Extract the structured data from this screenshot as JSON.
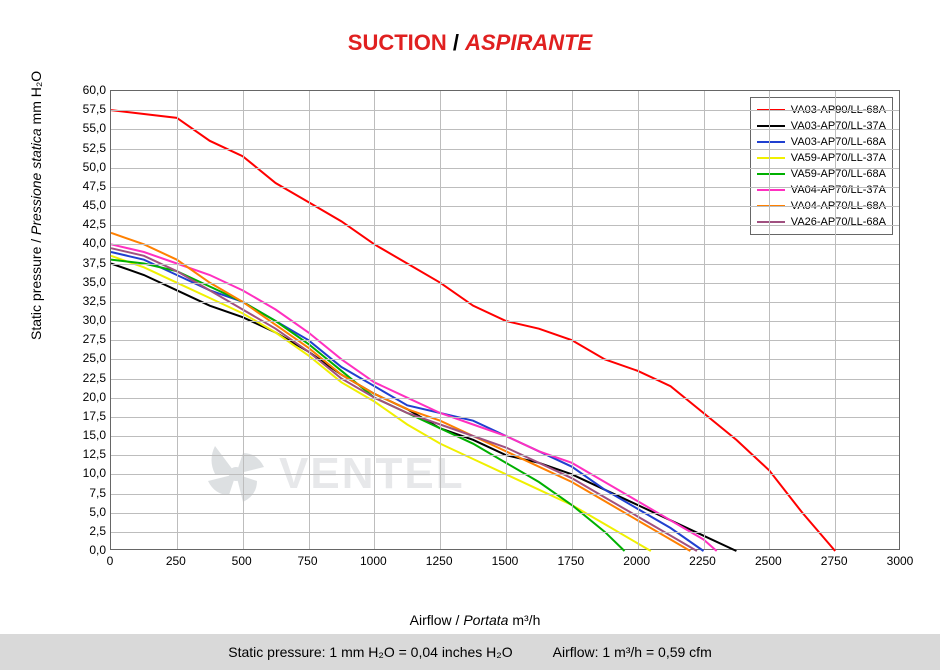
{
  "title": {
    "reg": "SUCTION",
    "sep": " / ",
    "ital": "ASPIRANTE"
  },
  "ylabel": {
    "reg": "Static pressure",
    "sep": " / ",
    "ital": "Pressione statica",
    "unit": " mm H₂O"
  },
  "xlabel": {
    "reg": "Airflow",
    "sep": " / ",
    "ital": "Portata",
    "unit": " m³/h"
  },
  "footer": {
    "left": "Static pressure: 1 mm H₂O = 0,04 inches H₂O",
    "right": "Airflow: 1 m³/h = 0,59 cfm"
  },
  "watermark": "VENTEL",
  "chart": {
    "type": "line",
    "xlim": [
      0,
      3000
    ],
    "ylim": [
      0,
      60
    ],
    "xtick_step": 250,
    "ytick_step": 2.5,
    "xtick_decimals": 0,
    "ytick_decimals": 1,
    "grid_color": "#bdbdbd",
    "border_color": "#666666",
    "background": "#ffffff",
    "line_width": 2,
    "series": [
      {
        "name": "VA03-AP90/LL-68A",
        "color": "#ff0000",
        "points": [
          [
            0,
            57.5
          ],
          [
            125,
            57
          ],
          [
            250,
            56.5
          ],
          [
            375,
            53.5
          ],
          [
            500,
            51.5
          ],
          [
            625,
            48
          ],
          [
            750,
            45.5
          ],
          [
            875,
            43
          ],
          [
            1000,
            40
          ],
          [
            1125,
            37.5
          ],
          [
            1250,
            35
          ],
          [
            1375,
            32
          ],
          [
            1500,
            30
          ],
          [
            1625,
            29
          ],
          [
            1750,
            27.5
          ],
          [
            1875,
            25
          ],
          [
            2000,
            23.5
          ],
          [
            2125,
            21.5
          ],
          [
            2250,
            18
          ],
          [
            2375,
            14.5
          ],
          [
            2500,
            10.5
          ],
          [
            2625,
            5
          ],
          [
            2750,
            0
          ]
        ]
      },
      {
        "name": "VA03-AP70/LL-37A",
        "color": "#000000",
        "points": [
          [
            0,
            37.5
          ],
          [
            125,
            36
          ],
          [
            250,
            34
          ],
          [
            375,
            32
          ],
          [
            500,
            30.5
          ],
          [
            625,
            28.5
          ],
          [
            750,
            26
          ],
          [
            875,
            23
          ],
          [
            1000,
            20.5
          ],
          [
            1125,
            18.5
          ],
          [
            1250,
            16
          ],
          [
            1375,
            14.5
          ],
          [
            1500,
            12.5
          ],
          [
            1625,
            11.5
          ],
          [
            1750,
            10
          ],
          [
            1875,
            8
          ],
          [
            2000,
            6
          ],
          [
            2125,
            4
          ],
          [
            2250,
            2
          ],
          [
            2375,
            0
          ]
        ]
      },
      {
        "name": "VA03-AP70/LL-68A",
        "color": "#2040d0",
        "points": [
          [
            0,
            39
          ],
          [
            125,
            38
          ],
          [
            250,
            36
          ],
          [
            375,
            34
          ],
          [
            500,
            32.5
          ],
          [
            625,
            30
          ],
          [
            750,
            27.5
          ],
          [
            875,
            24
          ],
          [
            1000,
            21.5
          ],
          [
            1125,
            19
          ],
          [
            1250,
            18
          ],
          [
            1375,
            17
          ],
          [
            1500,
            15
          ],
          [
            1625,
            13
          ],
          [
            1750,
            11
          ],
          [
            1875,
            8
          ],
          [
            2000,
            5.5
          ],
          [
            2125,
            3
          ],
          [
            2250,
            0
          ]
        ]
      },
      {
        "name": "VA59-AP70/LL-37A",
        "color": "#f0f000",
        "points": [
          [
            0,
            38.5
          ],
          [
            125,
            37
          ],
          [
            250,
            35
          ],
          [
            375,
            33
          ],
          [
            500,
            31
          ],
          [
            625,
            28.5
          ],
          [
            750,
            25.5
          ],
          [
            875,
            22
          ],
          [
            1000,
            19.5
          ],
          [
            1125,
            16.5
          ],
          [
            1250,
            14
          ],
          [
            1375,
            12
          ],
          [
            1500,
            10
          ],
          [
            1625,
            8
          ],
          [
            1750,
            6
          ],
          [
            1875,
            3.5
          ],
          [
            2000,
            1
          ],
          [
            2050,
            0
          ]
        ]
      },
      {
        "name": "VA59-AP70/LL-68A",
        "color": "#00b000",
        "points": [
          [
            0,
            38
          ],
          [
            125,
            37.5
          ],
          [
            250,
            36.5
          ],
          [
            375,
            34.5
          ],
          [
            500,
            32.5
          ],
          [
            625,
            30
          ],
          [
            750,
            27
          ],
          [
            875,
            23.5
          ],
          [
            1000,
            20
          ],
          [
            1125,
            18
          ],
          [
            1250,
            16
          ],
          [
            1375,
            14
          ],
          [
            1500,
            11.5
          ],
          [
            1625,
            9
          ],
          [
            1750,
            6
          ],
          [
            1875,
            2.5
          ],
          [
            1950,
            0
          ]
        ]
      },
      {
        "name": "VA04-AP70/LL-37A",
        "color": "#ff30c0",
        "points": [
          [
            0,
            40
          ],
          [
            125,
            39
          ],
          [
            250,
            37.5
          ],
          [
            375,
            36
          ],
          [
            500,
            34
          ],
          [
            625,
            31.5
          ],
          [
            750,
            28.5
          ],
          [
            875,
            25
          ],
          [
            1000,
            22
          ],
          [
            1125,
            20
          ],
          [
            1250,
            18
          ],
          [
            1375,
            16.5
          ],
          [
            1500,
            15
          ],
          [
            1625,
            13
          ],
          [
            1750,
            11.5
          ],
          [
            1875,
            9
          ],
          [
            2000,
            6.5
          ],
          [
            2125,
            4
          ],
          [
            2250,
            1.5
          ],
          [
            2300,
            0
          ]
        ]
      },
      {
        "name": "VA04-AP70/LL-68A",
        "color": "#ff8000",
        "points": [
          [
            0,
            41.5
          ],
          [
            125,
            40
          ],
          [
            250,
            38
          ],
          [
            375,
            35
          ],
          [
            500,
            32.5
          ],
          [
            625,
            29.5
          ],
          [
            750,
            26.5
          ],
          [
            875,
            23
          ],
          [
            1000,
            20.5
          ],
          [
            1125,
            18.5
          ],
          [
            1250,
            17
          ],
          [
            1375,
            15
          ],
          [
            1500,
            13
          ],
          [
            1625,
            11
          ],
          [
            1750,
            9
          ],
          [
            1875,
            6.5
          ],
          [
            2000,
            4
          ],
          [
            2125,
            1.5
          ],
          [
            2200,
            0
          ]
        ]
      },
      {
        "name": "VA26-AP70/LL-68A",
        "color": "#a05080",
        "points": [
          [
            0,
            39.5
          ],
          [
            125,
            38.5
          ],
          [
            250,
            36.5
          ],
          [
            375,
            34
          ],
          [
            500,
            31.5
          ],
          [
            625,
            29
          ],
          [
            750,
            26
          ],
          [
            875,
            22.5
          ],
          [
            1000,
            20
          ],
          [
            1125,
            18
          ],
          [
            1250,
            16.5
          ],
          [
            1375,
            15
          ],
          [
            1500,
            13.5
          ],
          [
            1625,
            11.5
          ],
          [
            1750,
            9.5
          ],
          [
            1875,
            7
          ],
          [
            2000,
            4.5
          ],
          [
            2125,
            2
          ],
          [
            2225,
            0
          ]
        ]
      }
    ]
  }
}
